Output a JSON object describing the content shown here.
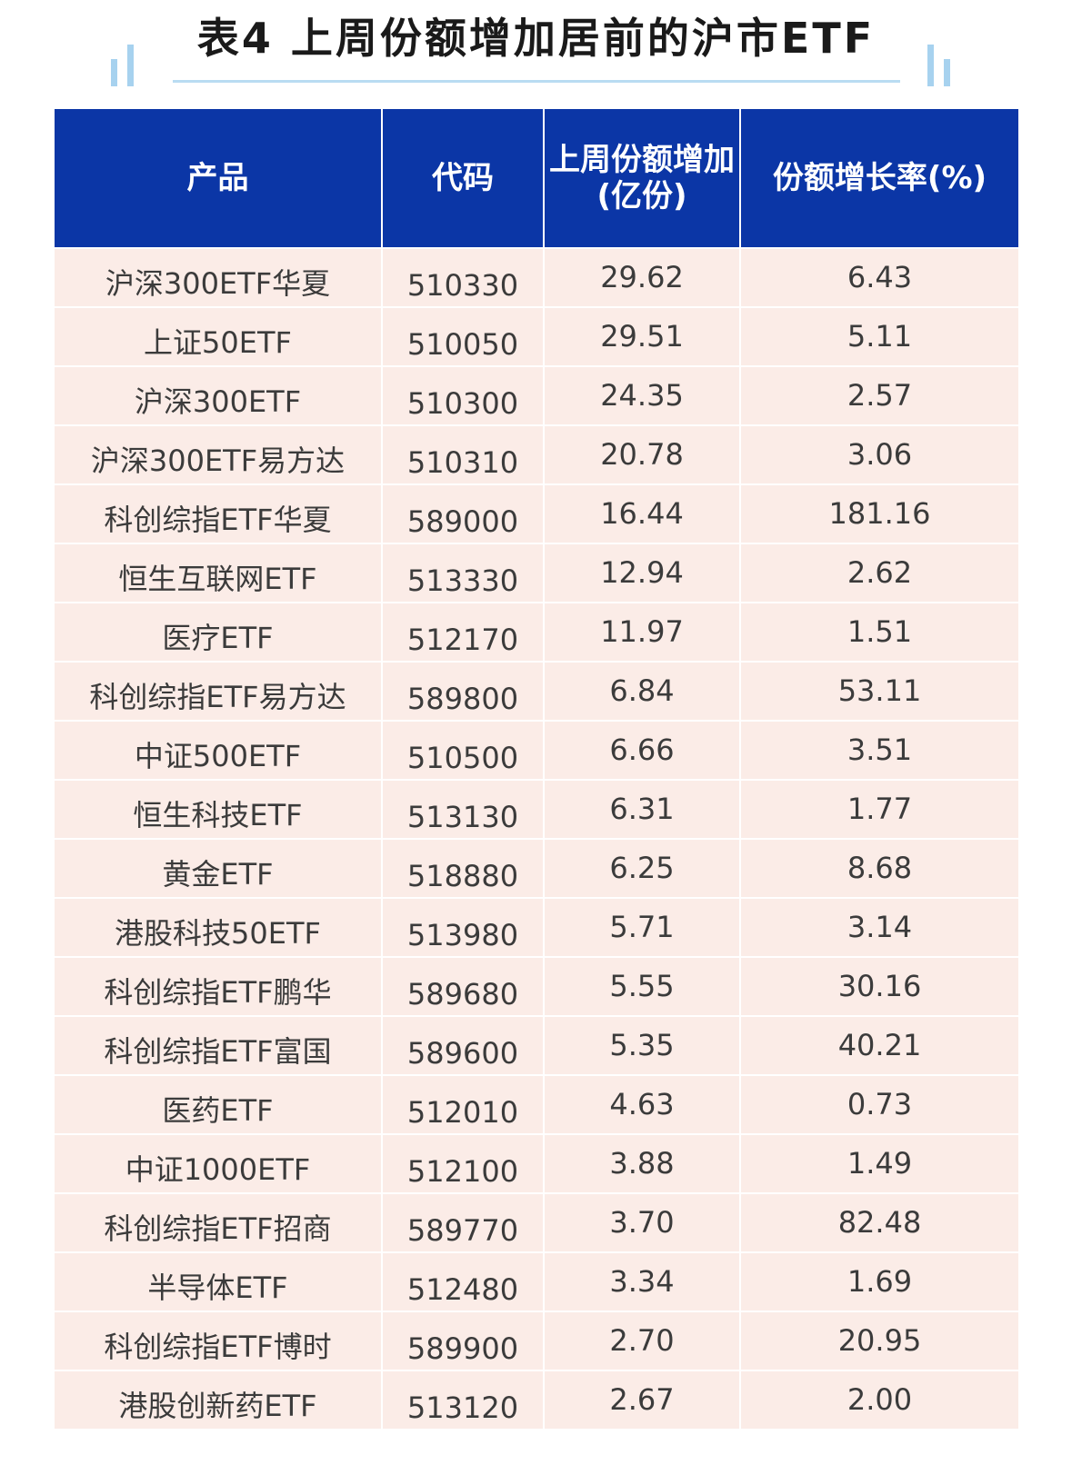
{
  "title": "表4 上周份额增加居前的沪市ETF",
  "accent_color": "#0b36a6",
  "row_color": "#fbece7",
  "columns": [
    "产品",
    "代码",
    "上周份额增加(亿份)",
    "份额增长率(%)"
  ],
  "header_lines": {
    "col3_line1": "上周份额增加",
    "col3_line2": "(亿份)"
  },
  "rows": [
    {
      "name": "沪深300ETF华夏",
      "code": "510330",
      "increase": "29.62",
      "rate": "6.43"
    },
    {
      "name": "上证50ETF",
      "code": "510050",
      "increase": "29.51",
      "rate": "5.11"
    },
    {
      "name": "沪深300ETF",
      "code": "510300",
      "increase": "24.35",
      "rate": "2.57"
    },
    {
      "name": "沪深300ETF易方达",
      "code": "510310",
      "increase": "20.78",
      "rate": "3.06"
    },
    {
      "name": "科创综指ETF华夏",
      "code": "589000",
      "increase": "16.44",
      "rate": "181.16"
    },
    {
      "name": "恒生互联网ETF",
      "code": "513330",
      "increase": "12.94",
      "rate": "2.62"
    },
    {
      "name": "医疗ETF",
      "code": "512170",
      "increase": "11.97",
      "rate": "1.51"
    },
    {
      "name": "科创综指ETF易方达",
      "code": "589800",
      "increase": "6.84",
      "rate": "53.11"
    },
    {
      "name": "中证500ETF",
      "code": "510500",
      "increase": "6.66",
      "rate": "3.51"
    },
    {
      "name": "恒生科技ETF",
      "code": "513130",
      "increase": "6.31",
      "rate": "1.77"
    },
    {
      "name": "黄金ETF",
      "code": "518880",
      "increase": "6.25",
      "rate": "8.68"
    },
    {
      "name": "港股科技50ETF",
      "code": "513980",
      "increase": "5.71",
      "rate": "3.14"
    },
    {
      "name": "科创综指ETF鹏华",
      "code": "589680",
      "increase": "5.55",
      "rate": "30.16"
    },
    {
      "name": "科创综指ETF富国",
      "code": "589600",
      "increase": "5.35",
      "rate": "40.21"
    },
    {
      "name": "医药ETF",
      "code": "512010",
      "increase": "4.63",
      "rate": "0.73"
    },
    {
      "name": "中证1000ETF",
      "code": "512100",
      "increase": "3.88",
      "rate": "1.49"
    },
    {
      "name": "科创综指ETF招商",
      "code": "589770",
      "increase": "3.70",
      "rate": "82.48"
    },
    {
      "name": "半导体ETF",
      "code": "512480",
      "increase": "3.34",
      "rate": "1.69"
    },
    {
      "name": "科创综指ETF博时",
      "code": "589900",
      "increase": "2.70",
      "rate": "20.95"
    },
    {
      "name": "港股创新药ETF",
      "code": "513120",
      "increase": "2.67",
      "rate": "2.00"
    }
  ]
}
